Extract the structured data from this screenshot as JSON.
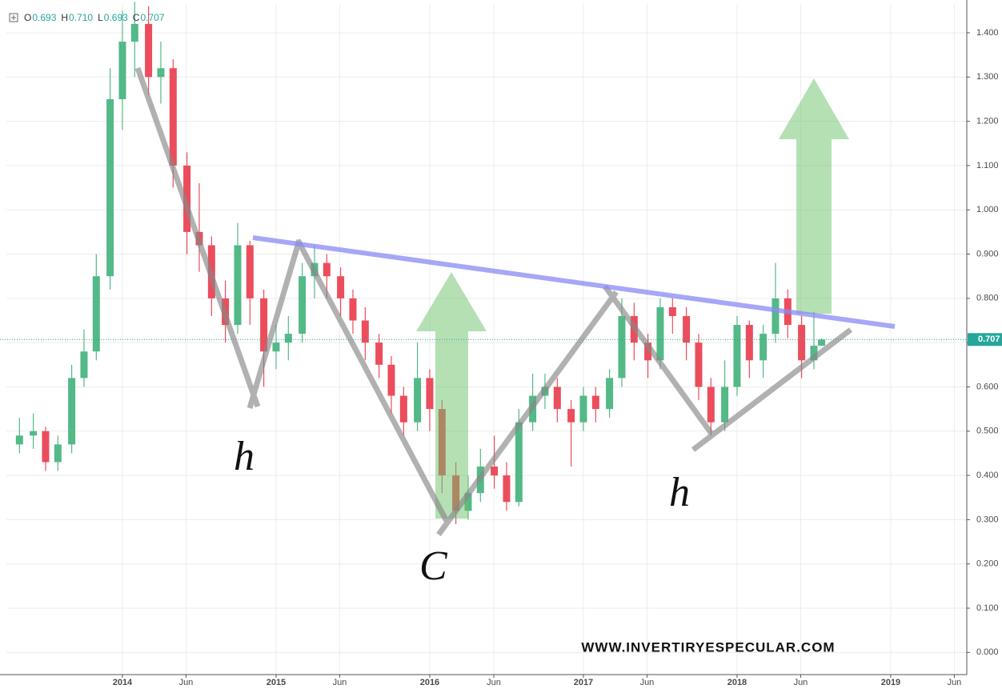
{
  "chart_data": {
    "type": "candlestick",
    "ohlc_legend": [
      {
        "name": "O",
        "value": "0.693"
      },
      {
        "name": "H",
        "value": "0.710"
      },
      {
        "name": "L",
        "value": "0.693"
      },
      {
        "name": "C",
        "value": "0.707"
      }
    ],
    "up_color": "#53b987",
    "down_color": "#eb4d5c",
    "x": [
      2013.33,
      2013.42,
      2013.5,
      2013.58,
      2013.67,
      2013.75,
      2013.83,
      2013.92,
      2014.0,
      2014.08,
      2014.17,
      2014.25,
      2014.33,
      2014.42,
      2014.5,
      2014.58,
      2014.67,
      2014.75,
      2014.83,
      2014.92,
      2015.0,
      2015.08,
      2015.17,
      2015.25,
      2015.33,
      2015.42,
      2015.5,
      2015.58,
      2015.67,
      2015.75,
      2015.83,
      2015.92,
      2016.0,
      2016.08,
      2016.17,
      2016.25,
      2016.33,
      2016.42,
      2016.5,
      2016.58,
      2016.67,
      2016.75,
      2016.83,
      2016.92,
      2017.0,
      2017.08,
      2017.17,
      2017.25,
      2017.33,
      2017.42,
      2017.5,
      2017.58,
      2017.67,
      2017.75,
      2017.83,
      2017.92,
      2018.0,
      2018.08,
      2018.17,
      2018.25,
      2018.33,
      2018.42,
      2018.5,
      2018.55
    ],
    "open": [
      0.47,
      0.49,
      0.5,
      0.43,
      0.47,
      0.62,
      0.68,
      0.85,
      1.25,
      1.38,
      1.42,
      1.3,
      1.32,
      1.1,
      0.95,
      0.92,
      0.8,
      0.74,
      0.92,
      0.8,
      0.68,
      0.7,
      0.72,
      0.85,
      0.88,
      0.85,
      0.8,
      0.75,
      0.7,
      0.65,
      0.58,
      0.52,
      0.62,
      0.55,
      0.4,
      0.32,
      0.36,
      0.42,
      0.4,
      0.34,
      0.52,
      0.58,
      0.6,
      0.55,
      0.52,
      0.58,
      0.55,
      0.62,
      0.76,
      0.7,
      0.66,
      0.78,
      0.76,
      0.7,
      0.6,
      0.52,
      0.6,
      0.74,
      0.66,
      0.72,
      0.8,
      0.74,
      0.66,
      0.693
    ],
    "high": [
      0.53,
      0.54,
      0.51,
      0.49,
      0.65,
      0.73,
      0.9,
      1.32,
      1.45,
      1.47,
      1.46,
      1.38,
      1.34,
      1.13,
      1.06,
      0.94,
      0.84,
      0.97,
      0.93,
      0.82,
      0.74,
      0.76,
      0.88,
      0.92,
      0.9,
      0.87,
      0.82,
      0.78,
      0.72,
      0.67,
      0.6,
      0.7,
      0.64,
      0.57,
      0.43,
      0.4,
      0.46,
      0.49,
      0.43,
      0.55,
      0.63,
      0.63,
      0.62,
      0.57,
      0.6,
      0.6,
      0.64,
      0.8,
      0.79,
      0.72,
      0.8,
      0.8,
      0.78,
      0.72,
      0.62,
      0.66,
      0.76,
      0.75,
      0.74,
      0.88,
      0.82,
      0.76,
      0.77,
      0.71
    ],
    "low": [
      0.45,
      0.46,
      0.41,
      0.41,
      0.45,
      0.6,
      0.66,
      0.82,
      1.18,
      1.3,
      1.26,
      1.24,
      1.05,
      0.9,
      0.86,
      0.76,
      0.7,
      0.72,
      0.74,
      0.6,
      0.64,
      0.66,
      0.7,
      0.8,
      0.8,
      0.76,
      0.72,
      0.66,
      0.62,
      0.54,
      0.49,
      0.5,
      0.5,
      0.36,
      0.29,
      0.3,
      0.34,
      0.37,
      0.32,
      0.33,
      0.5,
      0.55,
      0.52,
      0.42,
      0.5,
      0.52,
      0.53,
      0.6,
      0.66,
      0.62,
      0.64,
      0.72,
      0.66,
      0.57,
      0.49,
      0.5,
      0.58,
      0.62,
      0.62,
      0.7,
      0.71,
      0.62,
      0.64,
      0.693
    ],
    "close": [
      0.49,
      0.5,
      0.43,
      0.47,
      0.62,
      0.68,
      0.85,
      1.25,
      1.38,
      1.42,
      1.3,
      1.32,
      1.1,
      0.95,
      0.92,
      0.8,
      0.74,
      0.92,
      0.8,
      0.68,
      0.7,
      0.72,
      0.85,
      0.88,
      0.85,
      0.8,
      0.75,
      0.7,
      0.65,
      0.58,
      0.52,
      0.62,
      0.55,
      0.4,
      0.32,
      0.36,
      0.42,
      0.4,
      0.34,
      0.52,
      0.58,
      0.6,
      0.55,
      0.52,
      0.58,
      0.55,
      0.62,
      0.76,
      0.7,
      0.66,
      0.78,
      0.76,
      0.7,
      0.6,
      0.52,
      0.6,
      0.74,
      0.66,
      0.72,
      0.8,
      0.74,
      0.66,
      0.693,
      0.707
    ],
    "last_price": 0.707,
    "xlim": [
      2013.245,
      2019.495
    ],
    "xticks": [
      {
        "value": 2014,
        "label": "2014"
      },
      {
        "value": 2014.414,
        "label": "Jun"
      },
      {
        "value": 2015,
        "label": "2015"
      },
      {
        "value": 2015.414,
        "label": "Jun"
      },
      {
        "value": 2016,
        "label": "2016"
      },
      {
        "value": 2016.417,
        "label": "Jun"
      },
      {
        "value": 2017,
        "label": "2017"
      },
      {
        "value": 2017.414,
        "label": "Jun"
      },
      {
        "value": 2018,
        "label": "2018"
      },
      {
        "value": 2018.414,
        "label": "Jun"
      },
      {
        "value": 2019,
        "label": "2019"
      },
      {
        "value": 2019.414,
        "label": "Jun"
      }
    ],
    "ylim": [
      -0.05,
      1.465
    ],
    "yticks": [
      {
        "value": 0,
        "label": "0.000"
      },
      {
        "value": 0.1,
        "label": "0.100"
      },
      {
        "value": 0.2,
        "label": "0.200"
      },
      {
        "value": 0.3,
        "label": "0.300"
      },
      {
        "value": 0.4,
        "label": "0.400"
      },
      {
        "value": 0.5,
        "label": "0.500"
      },
      {
        "value": 0.6,
        "label": "0.600"
      },
      {
        "value": 0.7,
        "label": "0.700"
      },
      {
        "value": 0.8,
        "label": "0.800"
      },
      {
        "value": 0.9,
        "label": "0.900"
      },
      {
        "value": 1.0,
        "label": "1.000"
      },
      {
        "value": 1.1,
        "label": "1.100"
      },
      {
        "value": 1.2,
        "label": "1.200"
      },
      {
        "value": 1.3,
        "label": "1.300"
      },
      {
        "value": 1.4,
        "label": "1.400"
      }
    ],
    "grid": true,
    "annotations": [
      "h",
      "C",
      "h"
    ],
    "watermark": "WWW.INVERTIRYESPECULAR.COM"
  }
}
